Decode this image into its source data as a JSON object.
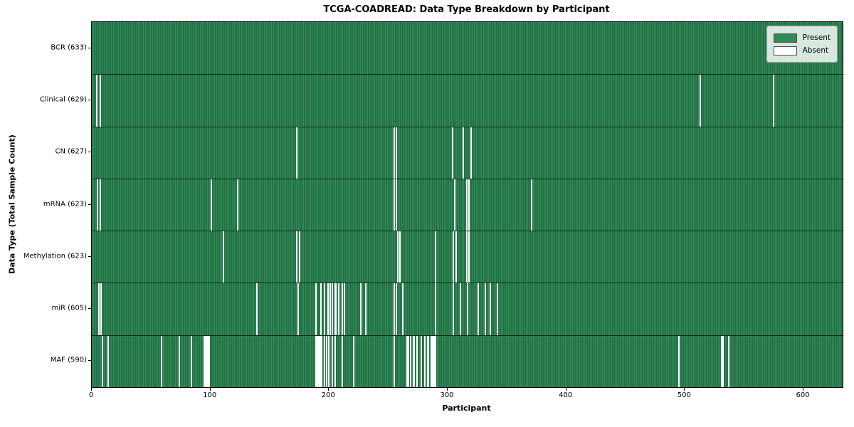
{
  "chart_data": {
    "type": "heatmap",
    "title": "TCGA-COADREAD: Data Type Breakdown by Participant",
    "xlabel": "Participant",
    "ylabel": "Data Type (Total Sample Count)",
    "xlim": [
      0,
      633
    ],
    "x_ticks": [
      0,
      100,
      200,
      300,
      400,
      500,
      600
    ],
    "n_participants": 633,
    "grid": false,
    "colors": {
      "present": "#2e8b57",
      "present_edge": "#1d5636",
      "absent": "#ffffff",
      "row_separator": "rgba(0,0,0,0.65)"
    },
    "legend": {
      "position": "upper right",
      "entries": [
        {
          "label": "Present",
          "color": "#2e8b57"
        },
        {
          "label": "Absent",
          "color": "#ffffff"
        }
      ]
    },
    "rows": [
      {
        "name": "BCR",
        "label": "BCR (633)",
        "present_count": 633,
        "absent_participants": []
      },
      {
        "name": "Clinical",
        "label": "Clinical (629)",
        "present_count": 629,
        "absent_participants": [
          4,
          7,
          513,
          575
        ]
      },
      {
        "name": "CN",
        "label": "CN (627)",
        "present_count": 627,
        "absent_participants": [
          173,
          255,
          257,
          304,
          313,
          320
        ]
      },
      {
        "name": "mRNA",
        "label": "mRNA (623)",
        "present_count": 623,
        "absent_participants": [
          5,
          7,
          101,
          123,
          255,
          257,
          306,
          316,
          318,
          371
        ]
      },
      {
        "name": "Methylation",
        "label": "Methylation (623)",
        "present_count": 623,
        "absent_participants": [
          111,
          173,
          175,
          258,
          260,
          290,
          305,
          307,
          316,
          318
        ]
      },
      {
        "name": "miR",
        "label": "miR (605)",
        "present_count": 605,
        "absent_participants": [
          6,
          8,
          139,
          174,
          189,
          193,
          196,
          199,
          201,
          203,
          205,
          206,
          208,
          211,
          213,
          227,
          231,
          255,
          257,
          262,
          290,
          305,
          311,
          317,
          326,
          332,
          336,
          342
        ]
      },
      {
        "name": "MAF",
        "label": "MAF (590)",
        "present_count": 590,
        "absent_participants": [
          9,
          14,
          59,
          74,
          84,
          95,
          96,
          97,
          98,
          99,
          189,
          190,
          191,
          192,
          193,
          194,
          196,
          198,
          200,
          203,
          205,
          211,
          221,
          255,
          266,
          267,
          269,
          271,
          272,
          274,
          278,
          281,
          283,
          284,
          286,
          287,
          288,
          289,
          290,
          495,
          531,
          532,
          537
        ]
      }
    ]
  }
}
